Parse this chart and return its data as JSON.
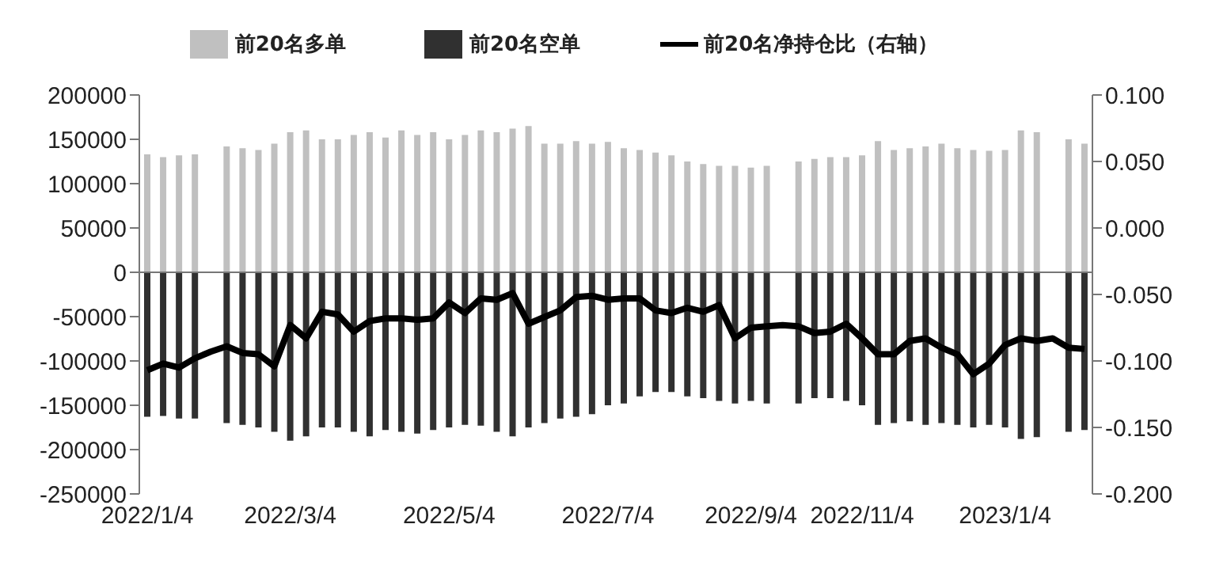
{
  "chart_data": {
    "type": "bar",
    "stacked": true,
    "legend": "top",
    "categories": [
      "2022/1/4",
      null,
      null,
      null,
      null,
      null,
      null,
      null,
      null,
      "2022/3/4",
      null,
      null,
      null,
      null,
      null,
      null,
      null,
      null,
      null,
      "2022/5/4",
      null,
      null,
      null,
      null,
      null,
      null,
      null,
      null,
      null,
      "2022/7/4",
      null,
      null,
      null,
      null,
      null,
      null,
      null,
      null,
      "2022/9/4",
      null,
      null,
      null,
      null,
      null,
      null,
      "2022/11/4",
      null,
      null,
      null,
      null,
      null,
      null,
      null,
      null,
      "2023/1/4",
      null,
      null,
      null,
      null,
      null
    ],
    "series": [
      {
        "name": "前20名多单",
        "color": "#c0c0c0",
        "values": [
          133000,
          130000,
          132000,
          133000,
          null,
          142000,
          140000,
          138000,
          145000,
          158000,
          160000,
          150000,
          150000,
          155000,
          158000,
          152000,
          160000,
          155000,
          158000,
          150000,
          155000,
          160000,
          158000,
          162000,
          165000,
          145000,
          145000,
          148000,
          145000,
          147000,
          140000,
          138000,
          135000,
          132000,
          125000,
          122000,
          120000,
          120000,
          118000,
          120000,
          null,
          125000,
          128000,
          130000,
          130000,
          132000,
          148000,
          138000,
          140000,
          142000,
          145000,
          140000,
          138000,
          137000,
          138000,
          160000,
          158000,
          null,
          150000,
          145000
        ]
      },
      {
        "name": "前20名空单",
        "color": "#303030",
        "values": [
          -163000,
          -162000,
          -165000,
          -165000,
          null,
          -170000,
          -172000,
          -175000,
          -180000,
          -190000,
          -185000,
          -175000,
          -175000,
          -180000,
          -185000,
          -178000,
          -180000,
          -182000,
          -178000,
          -175000,
          -172000,
          -173000,
          -180000,
          -185000,
          -175000,
          -170000,
          -165000,
          -163000,
          -160000,
          -150000,
          -148000,
          -140000,
          -135000,
          -135000,
          -140000,
          -142000,
          -145000,
          -148000,
          -145000,
          -148000,
          null,
          -148000,
          -142000,
          -142000,
          -145000,
          -150000,
          -172000,
          -170000,
          -168000,
          -172000,
          -170000,
          -172000,
          -175000,
          -172000,
          -175000,
          -188000,
          -186000,
          null,
          -180000,
          -178000
        ]
      },
      {
        "name": "前20名净持仓比（右轴）",
        "type": "line",
        "axis": "y2",
        "color": "#000000",
        "values": [
          -0.107,
          -0.102,
          -0.105,
          -0.098,
          -0.093,
          -0.089,
          -0.094,
          -0.095,
          -0.104,
          -0.073,
          -0.083,
          -0.063,
          -0.065,
          -0.078,
          -0.07,
          -0.068,
          -0.068,
          -0.069,
          -0.068,
          -0.056,
          -0.064,
          -0.053,
          -0.054,
          -0.049,
          -0.072,
          -0.067,
          -0.062,
          -0.052,
          -0.051,
          -0.054,
          -0.053,
          -0.053,
          -0.062,
          -0.064,
          -0.06,
          -0.063,
          -0.058,
          -0.083,
          -0.075,
          -0.074,
          -0.073,
          -0.074,
          -0.079,
          -0.078,
          -0.072,
          -0.083,
          -0.095,
          -0.095,
          -0.085,
          -0.083,
          -0.09,
          -0.095,
          -0.11,
          -0.102,
          -0.088,
          -0.083,
          -0.085,
          -0.083,
          -0.09,
          -0.091
        ]
      }
    ],
    "ylim": [
      -250000,
      200000
    ],
    "yticks": [
      -250000,
      -200000,
      -150000,
      -100000,
      -50000,
      0,
      50000,
      100000,
      150000,
      200000
    ],
    "y2lim": [
      -0.2,
      0.1
    ],
    "y2ticks": [
      {
        "value": -0.2,
        "label": "-0.200"
      },
      {
        "value": -0.15,
        "label": "-0.150"
      },
      {
        "value": -0.1,
        "label": "-0.100"
      },
      {
        "value": -0.05,
        "label": "-0.050"
      },
      {
        "value": 0,
        "label": "0.000"
      },
      {
        "value": 0.05,
        "label": "0.050"
      },
      {
        "value": 0.1,
        "label": "0.100"
      }
    ],
    "marker": "none",
    "line_style": "solid"
  }
}
